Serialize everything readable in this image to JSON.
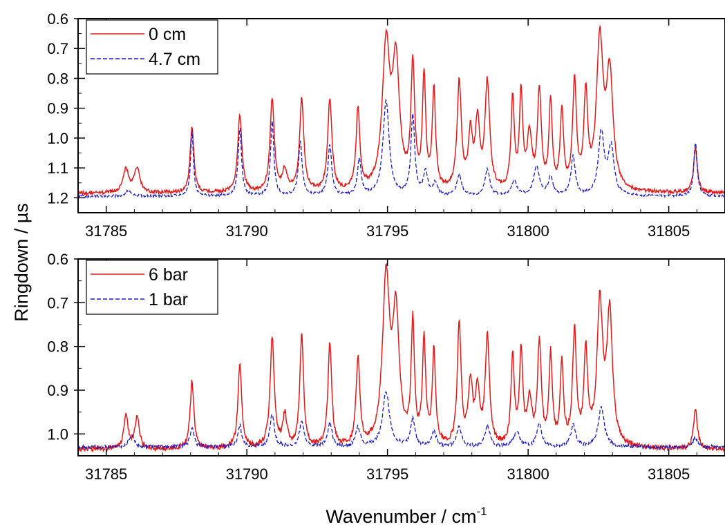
{
  "figure": {
    "ylabel": "Ringdown / µs",
    "xlabel_base": "Wavenumber / cm",
    "xlabel_sup": "-1"
  },
  "chart_data": [
    {
      "type": "line",
      "panel": "top",
      "xlim": [
        31784,
        31807
      ],
      "ylim": [
        0.6,
        1.25
      ],
      "y_inverted": true,
      "xticks": [
        31785,
        31790,
        31795,
        31800,
        31805
      ],
      "xtick_labels": [
        "31785",
        "31790",
        "31795",
        "31800",
        "31805"
      ],
      "yticks": [
        0.6,
        0.7,
        0.8,
        0.9,
        1.0,
        1.1,
        1.2
      ],
      "ytick_labels": [
        "0.6",
        "0.7",
        "0.8",
        "0.9",
        "1.0",
        "1.1",
        "1.2"
      ],
      "legend_position": "top-left",
      "series": [
        {
          "name": "0 cm",
          "color": "#e01b1b",
          "dash": "solid",
          "baseline": 1.185,
          "noise": 0.006,
          "peaks": [
            [
              31785.7,
              0.08,
              0.12
            ],
            [
              31786.1,
              0.08,
              0.12
            ],
            [
              31788.05,
              0.22,
              0.08
            ],
            [
              31789.75,
              0.26,
              0.09
            ],
            [
              31790.9,
              0.31,
              0.09
            ],
            [
              31791.35,
              0.07,
              0.1
            ],
            [
              31791.95,
              0.31,
              0.09
            ],
            [
              31792.95,
              0.31,
              0.09
            ],
            [
              31793.95,
              0.27,
              0.08
            ],
            [
              31794.95,
              0.47,
              0.16
            ],
            [
              31795.3,
              0.41,
              0.15
            ],
            [
              31795.9,
              0.41,
              0.08
            ],
            [
              31796.3,
              0.37,
              0.07
            ],
            [
              31796.65,
              0.33,
              0.07
            ],
            [
              31797.55,
              0.36,
              0.09
            ],
            [
              31797.95,
              0.18,
              0.09
            ],
            [
              31798.2,
              0.22,
              0.09
            ],
            [
              31798.55,
              0.36,
              0.1
            ],
            [
              31799.45,
              0.3,
              0.07
            ],
            [
              31799.75,
              0.32,
              0.07
            ],
            [
              31800.05,
              0.18,
              0.1
            ],
            [
              31800.4,
              0.33,
              0.08
            ],
            [
              31800.8,
              0.29,
              0.07
            ],
            [
              31801.2,
              0.26,
              0.07
            ],
            [
              31801.65,
              0.36,
              0.08
            ],
            [
              31802.05,
              0.31,
              0.08
            ],
            [
              31802.55,
              0.49,
              0.14
            ],
            [
              31802.9,
              0.38,
              0.14
            ],
            [
              31805.95,
              0.15,
              0.08
            ]
          ]
        },
        {
          "name": "4.7 cm",
          "color": "#1a1ac8",
          "dash": "dashed",
          "baseline": 1.195,
          "noise": 0.004,
          "peaks": [
            [
              31785.8,
              0.02,
              0.12
            ],
            [
              31788.05,
              0.22,
              0.06
            ],
            [
              31789.75,
              0.23,
              0.07
            ],
            [
              31790.9,
              0.25,
              0.07
            ],
            [
              31791.9,
              0.18,
              0.08
            ],
            [
              31792.95,
              0.17,
              0.08
            ],
            [
              31794.0,
              0.12,
              0.08
            ],
            [
              31794.95,
              0.32,
              0.13
            ],
            [
              31795.9,
              0.27,
              0.08
            ],
            [
              31796.35,
              0.08,
              0.09
            ],
            [
              31796.7,
              0.04,
              0.09
            ],
            [
              31797.55,
              0.07,
              0.1
            ],
            [
              31798.55,
              0.09,
              0.1
            ],
            [
              31799.5,
              0.05,
              0.12
            ],
            [
              31800.3,
              0.1,
              0.12
            ],
            [
              31800.8,
              0.06,
              0.1
            ],
            [
              31801.6,
              0.13,
              0.09
            ],
            [
              31802.6,
              0.21,
              0.12
            ],
            [
              31802.95,
              0.16,
              0.12
            ],
            [
              31805.95,
              0.18,
              0.07
            ]
          ]
        }
      ]
    },
    {
      "type": "line",
      "panel": "bottom",
      "xlim": [
        31784,
        31807
      ],
      "ylim": [
        0.6,
        1.05
      ],
      "y_inverted": true,
      "xticks": [
        31785,
        31790,
        31795,
        31800,
        31805
      ],
      "xtick_labels": [
        "31785",
        "31790",
        "31795",
        "31800",
        "31805"
      ],
      "yticks": [
        0.6,
        0.7,
        0.8,
        0.9,
        1.0
      ],
      "ytick_labels": [
        "0.6",
        "0.7",
        "0.8",
        "0.9",
        "1.0"
      ],
      "legend_position": "top-left",
      "series": [
        {
          "name": "6 bar",
          "color": "#e01b1b",
          "dash": "solid",
          "baseline": 1.035,
          "noise": 0.006,
          "peaks": [
            [
              31785.7,
              0.075,
              0.09
            ],
            [
              31786.1,
              0.075,
              0.09
            ],
            [
              31788.05,
              0.155,
              0.08
            ],
            [
              31789.75,
              0.195,
              0.08
            ],
            [
              31790.9,
              0.25,
              0.09
            ],
            [
              31791.35,
              0.07,
              0.09
            ],
            [
              31791.95,
              0.255,
              0.08
            ],
            [
              31792.95,
              0.24,
              0.08
            ],
            [
              31793.95,
              0.2,
              0.08
            ],
            [
              31794.95,
              0.38,
              0.15
            ],
            [
              31795.3,
              0.29,
              0.14
            ],
            [
              31795.9,
              0.28,
              0.07
            ],
            [
              31796.3,
              0.235,
              0.07
            ],
            [
              31796.65,
              0.215,
              0.07
            ],
            [
              31797.55,
              0.28,
              0.08
            ],
            [
              31797.95,
              0.14,
              0.09
            ],
            [
              31798.2,
              0.12,
              0.09
            ],
            [
              31798.55,
              0.25,
              0.09
            ],
            [
              31799.45,
              0.205,
              0.07
            ],
            [
              31799.75,
              0.21,
              0.07
            ],
            [
              31800.05,
              0.1,
              0.1
            ],
            [
              31800.4,
              0.235,
              0.08
            ],
            [
              31800.8,
              0.205,
              0.07
            ],
            [
              31801.2,
              0.185,
              0.07
            ],
            [
              31801.65,
              0.26,
              0.08
            ],
            [
              31802.05,
              0.21,
              0.08
            ],
            [
              31802.55,
              0.32,
              0.12
            ],
            [
              31802.9,
              0.3,
              0.12
            ],
            [
              31805.95,
              0.09,
              0.08
            ]
          ]
        },
        {
          "name": "1 bar",
          "color": "#1a1ac8",
          "dash": "dashed",
          "baseline": 1.03,
          "noise": 0.004,
          "peaks": [
            [
              31785.9,
              0.025,
              0.12
            ],
            [
              31788.05,
              0.045,
              0.08
            ],
            [
              31789.75,
              0.05,
              0.08
            ],
            [
              31790.9,
              0.075,
              0.09
            ],
            [
              31791.95,
              0.06,
              0.09
            ],
            [
              31792.95,
              0.055,
              0.09
            ],
            [
              31793.95,
              0.045,
              0.09
            ],
            [
              31794.95,
              0.125,
              0.15
            ],
            [
              31795.9,
              0.065,
              0.09
            ],
            [
              31796.65,
              0.035,
              0.1
            ],
            [
              31797.55,
              0.045,
              0.1
            ],
            [
              31798.55,
              0.05,
              0.1
            ],
            [
              31799.6,
              0.035,
              0.12
            ],
            [
              31800.4,
              0.055,
              0.1
            ],
            [
              31801.6,
              0.05,
              0.1
            ],
            [
              31802.6,
              0.09,
              0.13
            ],
            [
              31805.95,
              0.02,
              0.1
            ]
          ]
        }
      ]
    }
  ]
}
